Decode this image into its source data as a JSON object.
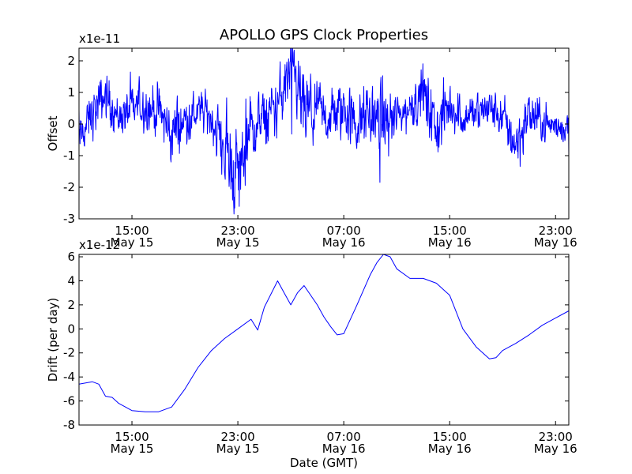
{
  "chart_data": [
    {
      "type": "line",
      "title": "APOLLO GPS Clock Properties",
      "ylabel": "Offset",
      "xlabel": "",
      "exponent_label": "x1e-11",
      "ylim": [
        -3,
        2.4
      ],
      "xlim": [
        "2012-05-15T11:00",
        "2012-05-17T00:00"
      ],
      "yticks": [
        {
          "value": -3,
          "label": "-3"
        },
        {
          "value": -2,
          "label": "-2"
        },
        {
          "value": -1,
          "label": "-1"
        },
        {
          "value": 0,
          "label": "0"
        },
        {
          "value": 1,
          "label": "1"
        },
        {
          "value": 2,
          "label": "2"
        }
      ],
      "xticks": [
        {
          "value": "2012-05-15T15:00",
          "time": "15:00",
          "date": "May 15"
        },
        {
          "value": "2012-05-15T23:00",
          "time": "23:00",
          "date": "May 15"
        },
        {
          "value": "2012-05-16T07:00",
          "time": "07:00",
          "date": "May 16"
        },
        {
          "value": "2012-05-16T15:00",
          "time": "15:00",
          "date": "May 16"
        },
        {
          "value": "2012-05-16T23:00",
          "time": "23:00",
          "date": "May 16"
        }
      ],
      "color": "#0000ff",
      "grid": false,
      "series": [
        {
          "x": [
            "2012-05-15T11:00",
            "2012-05-15T12:00",
            "2012-05-15T13:00",
            "2012-05-15T14:00",
            "2012-05-15T15:00",
            "2012-05-15T16:00",
            "2012-05-15T17:00",
            "2012-05-15T18:00",
            "2012-05-15T19:00",
            "2012-05-15T20:00",
            "2012-05-15T21:00",
            "2012-05-15T22:00",
            "2012-05-15T23:00",
            "2012-05-16T00:00",
            "2012-05-16T01:00",
            "2012-05-16T02:00",
            "2012-05-16T03:00",
            "2012-05-16T04:00",
            "2012-05-16T05:00",
            "2012-05-16T06:00",
            "2012-05-16T07:00",
            "2012-05-16T08:00",
            "2012-05-16T09:00",
            "2012-05-16T10:00",
            "2012-05-16T11:00",
            "2012-05-16T12:00",
            "2012-05-16T13:00",
            "2012-05-16T14:00",
            "2012-05-16T15:00",
            "2012-05-16T16:00",
            "2012-05-16T17:00",
            "2012-05-16T18:00",
            "2012-05-16T19:00",
            "2012-05-16T20:00",
            "2012-05-16T21:00",
            "2012-05-16T22:00",
            "2012-05-16T23:00",
            "2012-05-17T00:00"
          ],
          "y": [
            -0.5,
            0.3,
            0.9,
            0.2,
            0.5,
            0.6,
            0.4,
            -0.3,
            0.1,
            0.4,
            0.2,
            -0.8,
            -1.6,
            -0.2,
            0.1,
            0.6,
            1.6,
            0.4,
            0.3,
            0.2,
            0.5,
            -0.1,
            0.3,
            0.1,
            0.2,
            0.5,
            1.0,
            -0.2,
            0.6,
            0.2,
            0.4,
            0.5,
            0.2,
            -0.6,
            0.3,
            0.1,
            -0.1,
            -0.1
          ],
          "noise": [
            0.5,
            0.6,
            0.6,
            0.5,
            0.5,
            0.6,
            0.6,
            0.8,
            0.6,
            0.5,
            0.5,
            0.9,
            1.2,
            0.8,
            0.7,
            0.7,
            0.9,
            1.0,
            0.7,
            0.7,
            0.8,
            0.7,
            0.9,
            0.8,
            0.6,
            0.6,
            0.7,
            0.9,
            0.6,
            0.5,
            0.5,
            0.5,
            0.5,
            0.8,
            0.6,
            0.5,
            0.4,
            0.4
          ]
        }
      ]
    },
    {
      "type": "line",
      "title": "",
      "ylabel": "Drift (per day)",
      "xlabel": "Date (GMT)",
      "exponent_label": "x1e-12",
      "ylim": [
        -8,
        6.2
      ],
      "xlim": [
        "2012-05-15T11:00",
        "2012-05-17T00:00"
      ],
      "yticks": [
        {
          "value": -8,
          "label": "-8"
        },
        {
          "value": -6,
          "label": "-6"
        },
        {
          "value": -4,
          "label": "-4"
        },
        {
          "value": -2,
          "label": "-2"
        },
        {
          "value": 0,
          "label": "0"
        },
        {
          "value": 2,
          "label": "2"
        },
        {
          "value": 4,
          "label": "4"
        },
        {
          "value": 6,
          "label": "6"
        }
      ],
      "xticks": [
        {
          "value": "2012-05-15T15:00",
          "time": "15:00",
          "date": "May 15"
        },
        {
          "value": "2012-05-15T23:00",
          "time": "23:00",
          "date": "May 15"
        },
        {
          "value": "2012-05-16T07:00",
          "time": "07:00",
          "date": "May 16"
        },
        {
          "value": "2012-05-16T15:00",
          "time": "15:00",
          "date": "May 16"
        },
        {
          "value": "2012-05-16T23:00",
          "time": "23:00",
          "date": "May 16"
        }
      ],
      "color": "#0000ff",
      "grid": false,
      "series": [
        {
          "x": [
            "2012-05-15T11:00",
            "2012-05-15T12:00",
            "2012-05-15T12:30",
            "2012-05-15T13:00",
            "2012-05-15T13:30",
            "2012-05-15T14:00",
            "2012-05-15T15:00",
            "2012-05-15T16:00",
            "2012-05-15T17:00",
            "2012-05-15T18:00",
            "2012-05-15T19:00",
            "2012-05-15T20:00",
            "2012-05-15T21:00",
            "2012-05-15T22:00",
            "2012-05-15T23:00",
            "2012-05-16T00:00",
            "2012-05-16T00:30",
            "2012-05-16T01:00",
            "2012-05-16T02:00",
            "2012-05-16T02:30",
            "2012-05-16T03:00",
            "2012-05-16T03:30",
            "2012-05-16T04:00",
            "2012-05-16T05:00",
            "2012-05-16T05:30",
            "2012-05-16T06:00",
            "2012-05-16T06:30",
            "2012-05-16T07:00",
            "2012-05-16T08:00",
            "2012-05-16T09:00",
            "2012-05-16T09:30",
            "2012-05-16T10:00",
            "2012-05-16T10:30",
            "2012-05-16T11:00",
            "2012-05-16T12:00",
            "2012-05-16T13:00",
            "2012-05-16T14:00",
            "2012-05-16T15:00",
            "2012-05-16T16:00",
            "2012-05-16T17:00",
            "2012-05-16T18:00",
            "2012-05-16T18:30",
            "2012-05-16T19:00",
            "2012-05-16T20:00",
            "2012-05-16T21:00",
            "2012-05-16T22:00",
            "2012-05-16T23:00",
            "2012-05-17T00:00"
          ],
          "y": [
            -4.6,
            -4.4,
            -4.6,
            -5.6,
            -5.7,
            -6.2,
            -6.8,
            -6.9,
            -6.9,
            -6.5,
            -5.0,
            -3.2,
            -1.8,
            -0.8,
            0.0,
            0.8,
            -0.1,
            1.8,
            4.0,
            3.0,
            2.0,
            3.0,
            3.6,
            2.0,
            1.0,
            0.2,
            -0.5,
            -0.4,
            2.0,
            4.5,
            5.5,
            6.2,
            6.0,
            5.0,
            4.2,
            4.2,
            3.8,
            2.8,
            0.0,
            -1.5,
            -2.5,
            -2.4,
            -1.8,
            -1.2,
            -0.5,
            0.3,
            0.9,
            1.5
          ]
        }
      ]
    }
  ]
}
